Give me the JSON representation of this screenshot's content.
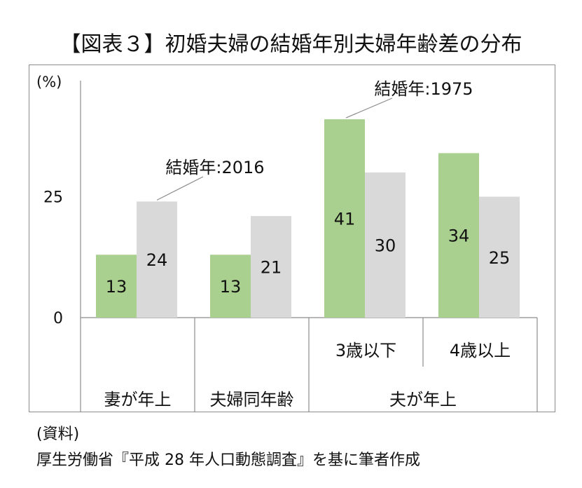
{
  "title": "【図表３】初婚夫婦の結婚年別夫婦年齢差の分布",
  "chart_data": {
    "type": "bar",
    "ylabel": "(%)",
    "ylim": [
      0,
      50
    ],
    "yticks": [
      0,
      25
    ],
    "categories": [
      "妻が年上",
      "夫婦同年齢",
      "3歳以下",
      "4歳以上"
    ],
    "groups": [
      {
        "label": "妻が年上",
        "members": [
          0
        ]
      },
      {
        "label": "夫婦同年齢",
        "members": [
          1
        ]
      },
      {
        "label": "夫が年上",
        "members": [
          2,
          3
        ]
      }
    ],
    "series": [
      {
        "name": "結婚年:1975",
        "color": "#a9d08e",
        "values": [
          13,
          13,
          41,
          34
        ]
      },
      {
        "name": "結婚年:2016",
        "color": "#d9d9d9",
        "values": [
          24,
          21,
          30,
          25
        ]
      }
    ],
    "grid": false
  },
  "source": {
    "label": "(資料)",
    "text": "厚生労働省『平成 28 年人口動態調査』を基に筆者作成"
  }
}
